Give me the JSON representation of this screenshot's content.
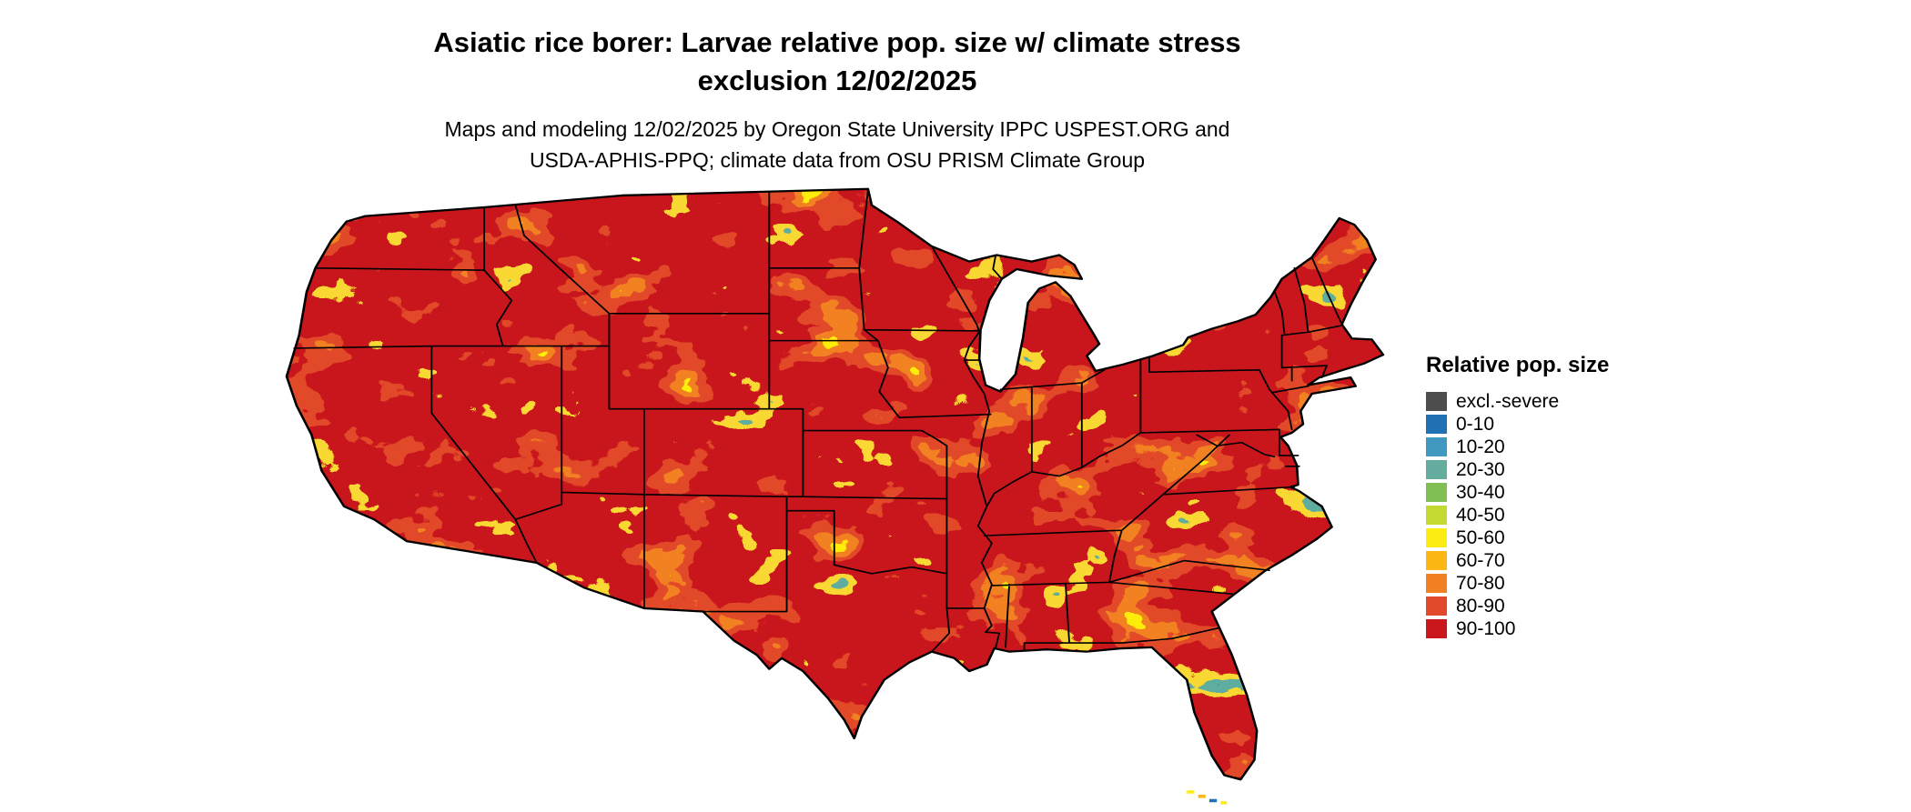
{
  "header": {
    "title_line1": "Asiatic rice borer: Larvae relative pop. size w/ climate stress",
    "title_line2": "exclusion 12/02/2025",
    "subtitle_line1": "Maps and modeling 12/02/2025 by Oregon State University IPPC USPEST.ORG and",
    "subtitle_line2": "USDA-APHIS-PPQ; climate data from OSU PRISM Climate Group"
  },
  "map": {
    "region": "Contiguous United States",
    "kind": "raster map of relative population size with state borders"
  },
  "legend": {
    "title": "Relative pop. size",
    "entries": [
      {
        "label": "excl.-severe",
        "color": "#4d4d4d"
      },
      {
        "label": "0-10",
        "color": "#2171b5"
      },
      {
        "label": "10-20",
        "color": "#4199c2"
      },
      {
        "label": "20-30",
        "color": "#64ad9e"
      },
      {
        "label": "30-40",
        "color": "#7fbf53"
      },
      {
        "label": "40-50",
        "color": "#c4d932"
      },
      {
        "label": "50-60",
        "color": "#fdec13"
      },
      {
        "label": "60-70",
        "color": "#fdb714"
      },
      {
        "label": "70-80",
        "color": "#f28123"
      },
      {
        "label": "80-90",
        "color": "#e1492a"
      },
      {
        "label": "90-100",
        "color": "#c9171c"
      }
    ]
  }
}
